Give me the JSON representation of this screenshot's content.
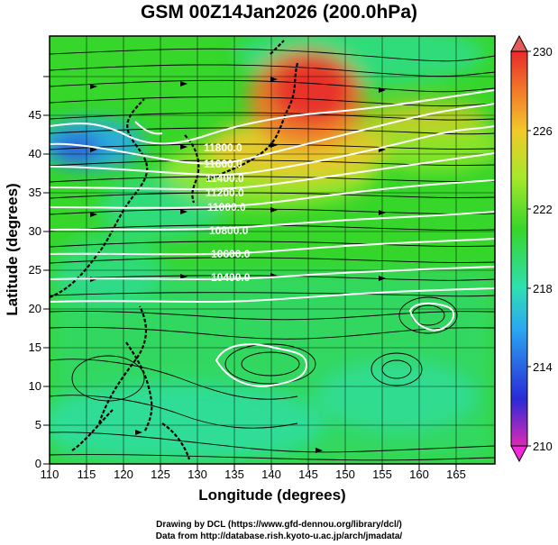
{
  "title": "GSM 00Z14Jan2026 (200.0hPa)",
  "map": {
    "variable_level_hpa": 200.0,
    "x_axis": {
      "label": "Longitude (degrees)",
      "range": [
        110,
        170
      ],
      "tick_labels": [
        "110",
        "115",
        "120",
        "125",
        "130",
        "135",
        "140",
        "145",
        "150",
        "155",
        "160",
        "165"
      ]
    },
    "y_axis": {
      "label": "Latitude (degrees)",
      "range": [
        0,
        50
      ],
      "tick_labels": [
        "0",
        "5",
        "10",
        "15",
        "20",
        "25",
        "30",
        "35",
        "40",
        "45"
      ]
    },
    "colorbar": {
      "range": [
        210,
        230
      ],
      "tick_labels": [
        "210",
        "214",
        "218",
        "222",
        "226",
        "230"
      ],
      "colors": [
        "#dd2ab5",
        "#2a2ad8",
        "#2aaaf0",
        "#2ee0b0",
        "#36d62a",
        "#a6e82a",
        "#f2c82a",
        "#f27a2a",
        "#e82a2a"
      ]
    },
    "contour_labels": [
      "11800.0",
      "11600.0",
      "11400.0",
      "11200.0",
      "11000.0",
      "10800.0",
      "10600.0",
      "10400.0"
    ],
    "contour_color": "#ffffff",
    "vector_color": "#000000",
    "coastline_color": "#000000"
  },
  "credits": {
    "line1": "Drawing by DCL (https://www.gfd-dennou.org/library/dcl/)",
    "line2": "Data from http://database.rish.kyoto-u.ac.jp/arch/jmadata/"
  }
}
